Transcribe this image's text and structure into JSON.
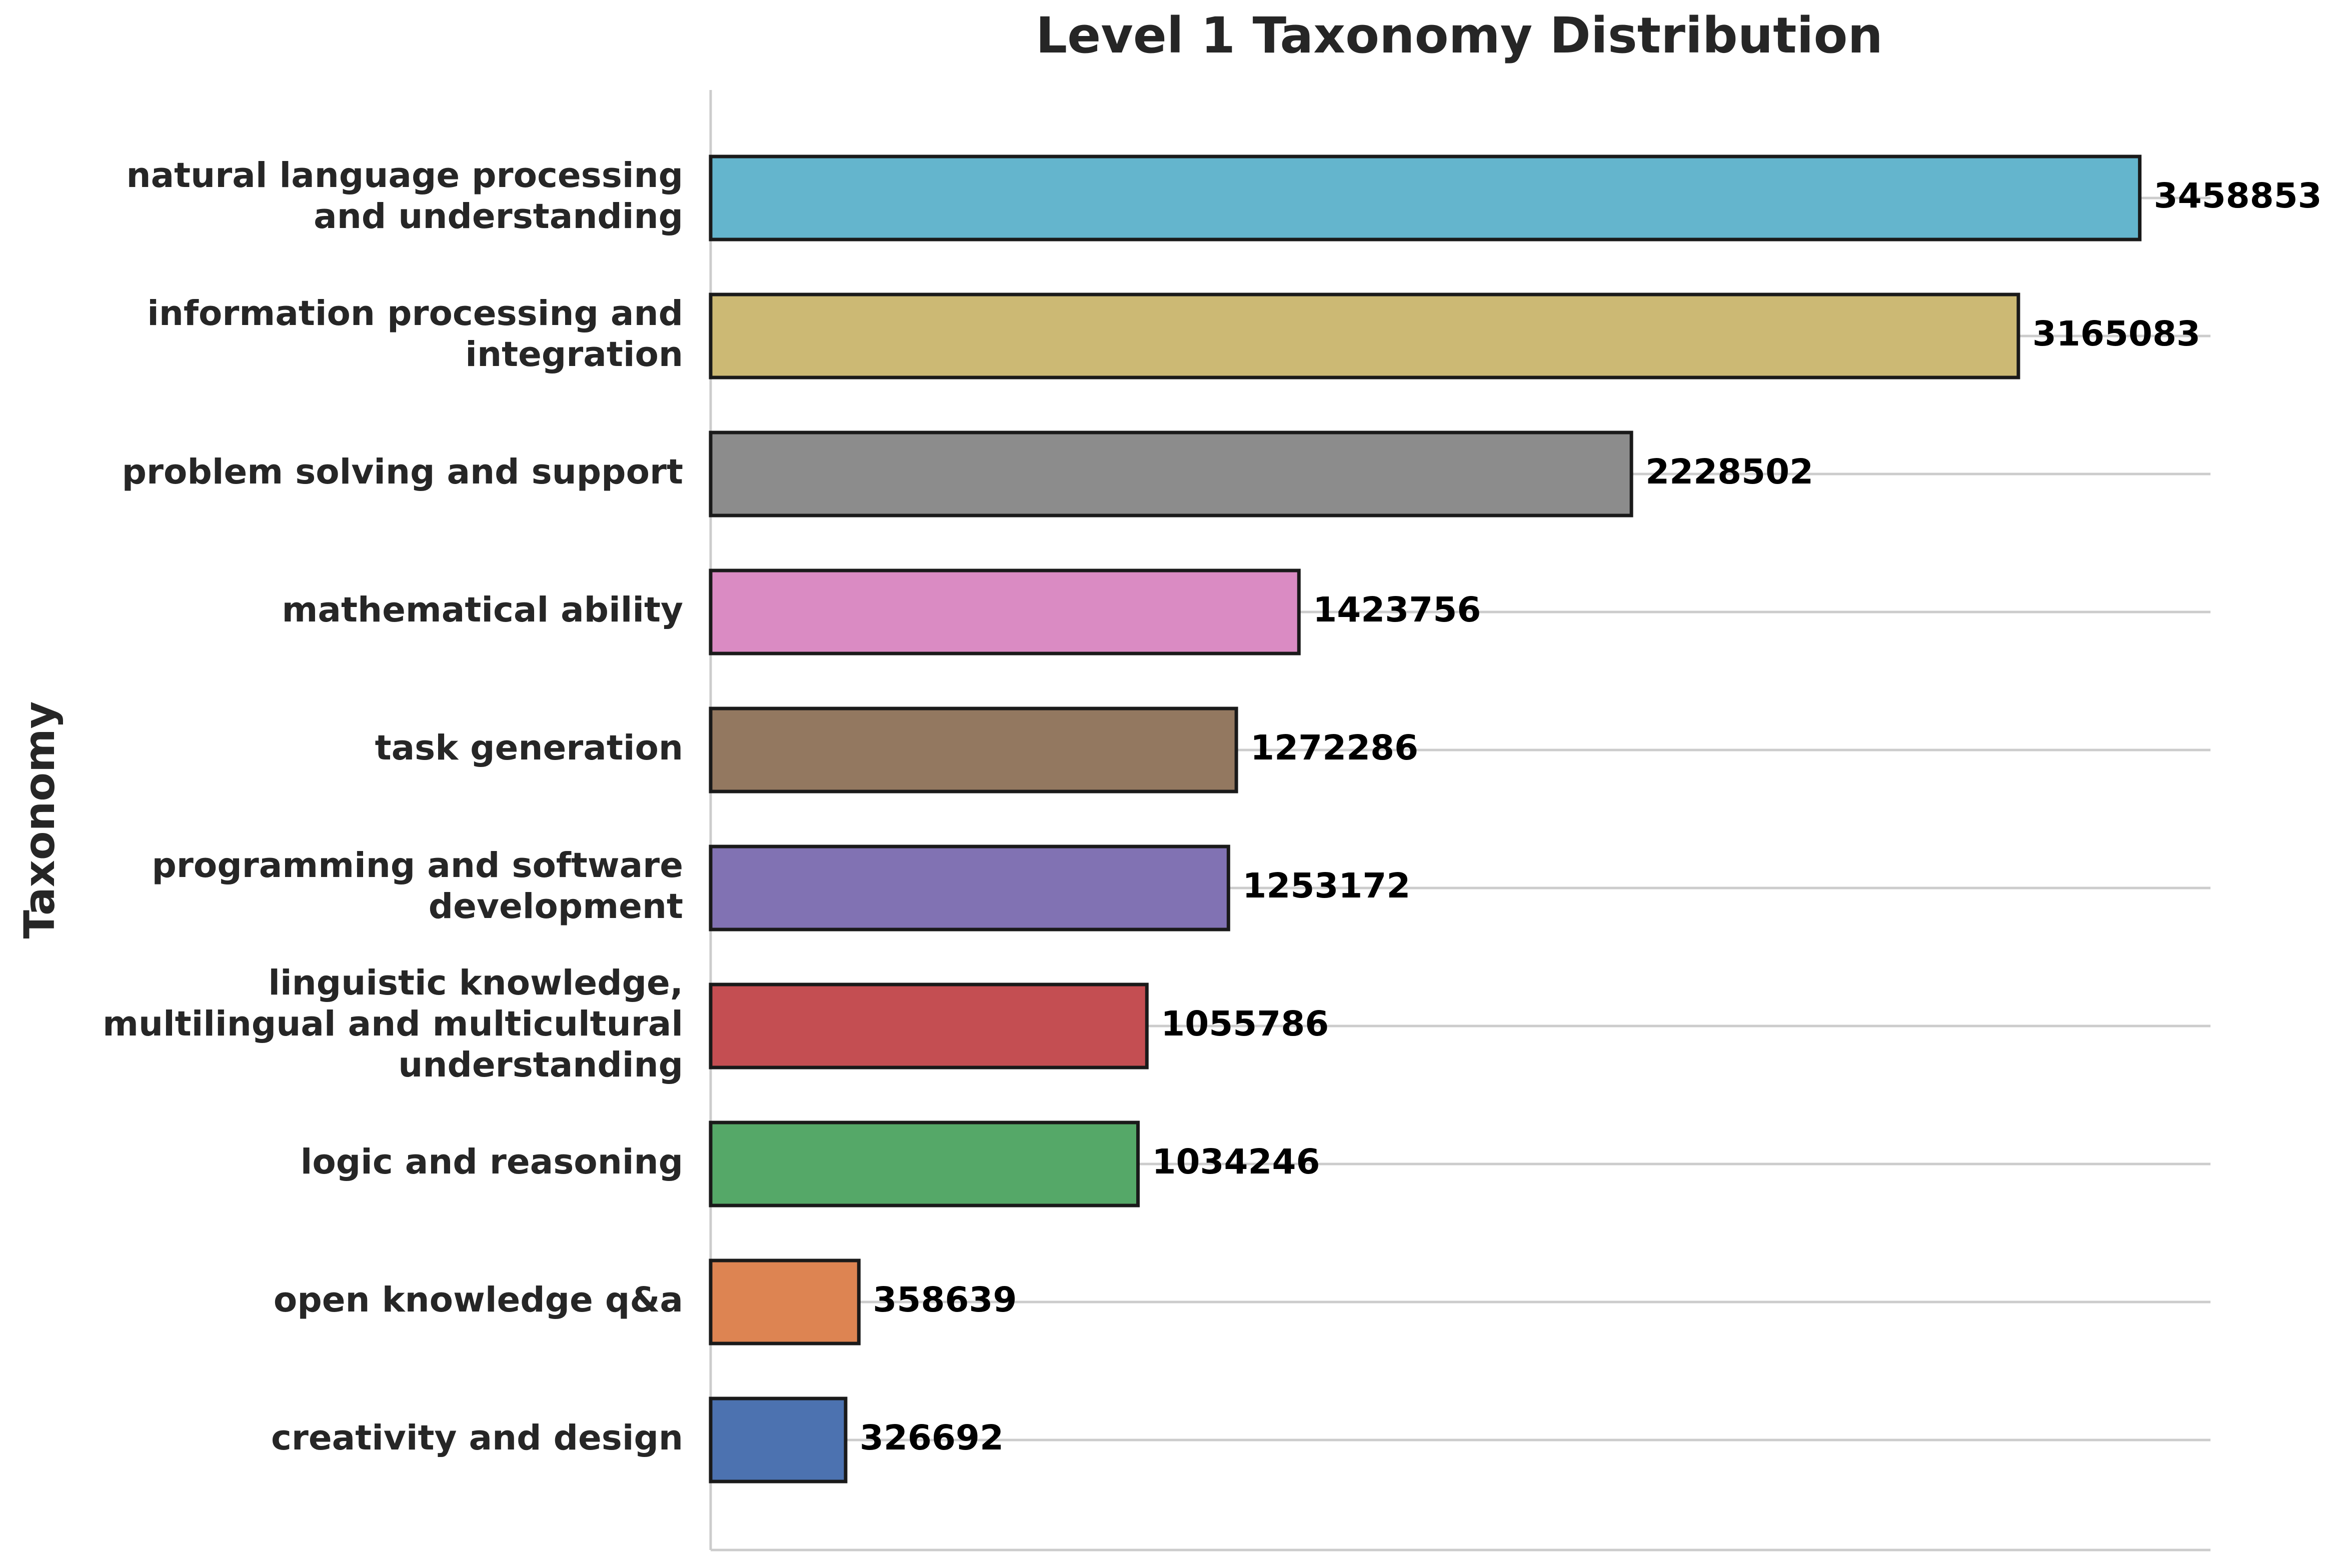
{
  "chart_data": {
    "type": "bar",
    "orientation": "horizontal",
    "title": "Level 1 Taxonomy Distribution",
    "xlabel": "",
    "ylabel": "Taxonomy",
    "grid": "x-gridlines-off, horizontal guide lines at each category",
    "xlim": [
      0,
      3630000
    ],
    "categories": [
      [
        "natural language processing",
        "and understanding"
      ],
      [
        "information processing and",
        "integration"
      ],
      [
        "problem solving and support"
      ],
      [
        "mathematical ability"
      ],
      [
        "task generation"
      ],
      [
        "programming and software",
        "development"
      ],
      [
        "linguistic knowledge,",
        "multilingual and multicultural",
        "understanding"
      ],
      [
        "logic and reasoning"
      ],
      [
        "open knowledge q&a"
      ],
      [
        "creativity and design"
      ]
    ],
    "values": [
      3458853,
      3165083,
      2228502,
      1423756,
      1272286,
      1253172,
      1055786,
      1034246,
      358639,
      326692
    ],
    "value_labels": [
      "3458853",
      "3165083",
      "2228502",
      "1423756",
      "1272286",
      "1253172",
      "1055786",
      "1034246",
      "358639",
      "326692"
    ],
    "colors": [
      "#64b5cd",
      "#ccb974",
      "#8c8c8c",
      "#da8bc3",
      "#937860",
      "#8172b3",
      "#c44e52",
      "#55a868",
      "#dd8452",
      "#4c72b0"
    ],
    "edge_color": "#1a1a1a"
  }
}
